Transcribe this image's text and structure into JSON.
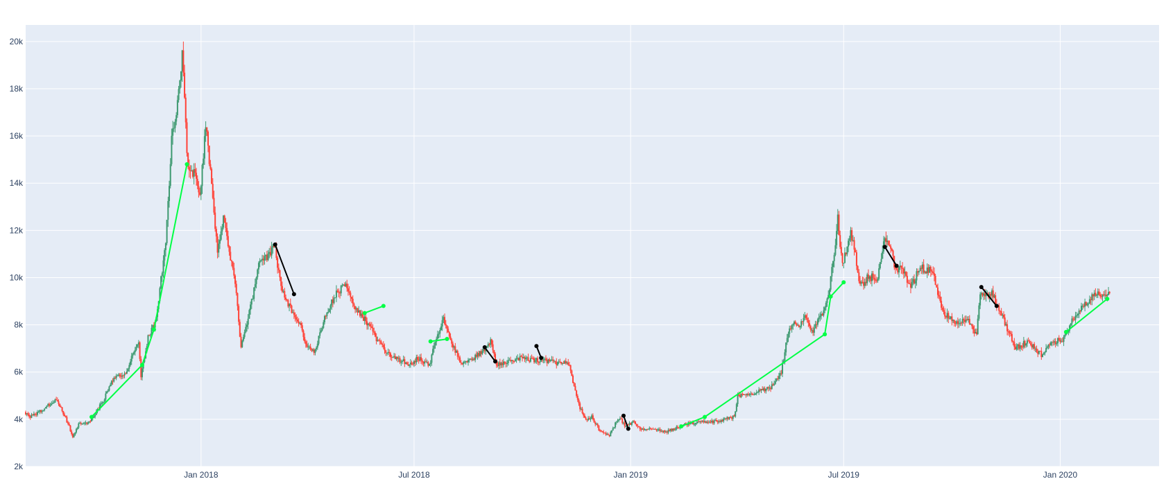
{
  "chart_data": {
    "type": "candlestick",
    "title": "",
    "xlabel": "",
    "ylabel": "",
    "xlim": [
      "2017-08-05",
      "2020-03-25"
    ],
    "ylim": [
      2000,
      20700
    ],
    "grid": true,
    "legend": "none",
    "x_ticks": [
      {
        "date": "2018-01-01",
        "label": "Jan 2018"
      },
      {
        "date": "2018-07-01",
        "label": "Jul 2018"
      },
      {
        "date": "2019-01-01",
        "label": "Jan 2019"
      },
      {
        "date": "2019-07-01",
        "label": "Jul 2019"
      },
      {
        "date": "2020-01-01",
        "label": "Jan 2020"
      }
    ],
    "y_ticks": [
      {
        "value": 2000,
        "label": "2k"
      },
      {
        "value": 4000,
        "label": "4k"
      },
      {
        "value": 6000,
        "label": "6k"
      },
      {
        "value": 8000,
        "label": "8k"
      },
      {
        "value": 10000,
        "label": "10k"
      },
      {
        "value": 12000,
        "label": "12k"
      },
      {
        "value": 14000,
        "label": "14k"
      },
      {
        "value": 16000,
        "label": "16k"
      },
      {
        "value": 18000,
        "label": "18k"
      },
      {
        "value": 20000,
        "label": "20k"
      }
    ],
    "colors": {
      "increasing": "#3d9970",
      "decreasing": "#ff4136",
      "uptrend_line": "#00ff44",
      "downtrend_line": "#000000",
      "plot_bg": "#e5ecf6",
      "grid": "#ffffff"
    },
    "price_path": [
      [
        "2017-08-05",
        4300
      ],
      [
        "2017-08-10",
        4100
      ],
      [
        "2017-08-20",
        4400
      ],
      [
        "2017-08-31",
        4800
      ],
      [
        "2017-09-05",
        4500
      ],
      [
        "2017-09-12",
        3700
      ],
      [
        "2017-09-15",
        3200
      ],
      [
        "2017-09-20",
        3800
      ],
      [
        "2017-09-30",
        3900
      ],
      [
        "2017-10-05",
        4300
      ],
      [
        "2017-10-12",
        4900
      ],
      [
        "2017-10-20",
        5800
      ],
      [
        "2017-10-31",
        6000
      ],
      [
        "2017-11-05",
        6800
      ],
      [
        "2017-11-10",
        7200
      ],
      [
        "2017-11-12",
        5800
      ],
      [
        "2017-11-18",
        7500
      ],
      [
        "2017-11-25",
        8200
      ],
      [
        "2017-11-29",
        10000
      ],
      [
        "2017-12-03",
        11300
      ],
      [
        "2017-12-08",
        16000
      ],
      [
        "2017-12-12",
        16800
      ],
      [
        "2017-12-17",
        19500
      ],
      [
        "2017-12-22",
        14500
      ],
      [
        "2017-12-27",
        14500
      ],
      [
        "2018-01-01",
        13500
      ],
      [
        "2018-01-06",
        16500
      ],
      [
        "2018-01-10",
        14500
      ],
      [
        "2018-01-16",
        11000
      ],
      [
        "2018-01-21",
        12500
      ],
      [
        "2018-01-26",
        11000
      ],
      [
        "2018-02-01",
        9500
      ],
      [
        "2018-02-05",
        7000
      ],
      [
        "2018-02-12",
        8500
      ],
      [
        "2018-02-20",
        10500
      ],
      [
        "2018-03-01",
        11000
      ],
      [
        "2018-03-05",
        11400
      ],
      [
        "2018-03-12",
        9500
      ],
      [
        "2018-03-20",
        8600
      ],
      [
        "2018-03-27",
        8000
      ],
      [
        "2018-04-03",
        7000
      ],
      [
        "2018-04-08",
        6800
      ],
      [
        "2018-04-15",
        8000
      ],
      [
        "2018-04-25",
        9200
      ],
      [
        "2018-05-05",
        9700
      ],
      [
        "2018-05-12",
        8700
      ],
      [
        "2018-05-20",
        8300
      ],
      [
        "2018-05-30",
        7500
      ],
      [
        "2018-06-10",
        6800
      ],
      [
        "2018-06-20",
        6500
      ],
      [
        "2018-06-30",
        6300
      ],
      [
        "2018-07-05",
        6600
      ],
      [
        "2018-07-15",
        6300
      ],
      [
        "2018-07-20",
        7300
      ],
      [
        "2018-07-27",
        8200
      ],
      [
        "2018-08-05",
        7000
      ],
      [
        "2018-08-12",
        6300
      ],
      [
        "2018-08-20",
        6500
      ],
      [
        "2018-08-31",
        7000
      ],
      [
        "2018-09-05",
        7300
      ],
      [
        "2018-09-10",
        6300
      ],
      [
        "2018-09-20",
        6500
      ],
      [
        "2018-09-30",
        6600
      ],
      [
        "2018-10-10",
        6500
      ],
      [
        "2018-10-20",
        6500
      ],
      [
        "2018-10-31",
        6400
      ],
      [
        "2018-11-10",
        6400
      ],
      [
        "2018-11-14",
        5600
      ],
      [
        "2018-11-20",
        4500
      ],
      [
        "2018-11-25",
        4000
      ],
      [
        "2018-11-30",
        4100
      ],
      [
        "2018-12-07",
        3500
      ],
      [
        "2018-12-15",
        3300
      ],
      [
        "2018-12-20",
        3800
      ],
      [
        "2018-12-24",
        4100
      ],
      [
        "2018-12-28",
        3700
      ],
      [
        "2019-01-05",
        3900
      ],
      [
        "2019-01-10",
        3600
      ],
      [
        "2019-01-20",
        3600
      ],
      [
        "2019-01-31",
        3450
      ],
      [
        "2019-02-08",
        3600
      ],
      [
        "2019-02-18",
        3800
      ],
      [
        "2019-02-28",
        3850
      ],
      [
        "2019-03-15",
        3900
      ],
      [
        "2019-03-31",
        4100
      ],
      [
        "2019-04-03",
        5000
      ],
      [
        "2019-04-15",
        5100
      ],
      [
        "2019-04-30",
        5300
      ],
      [
        "2019-05-10",
        6000
      ],
      [
        "2019-05-15",
        7500
      ],
      [
        "2019-05-20",
        8100
      ],
      [
        "2019-05-25",
        7800
      ],
      [
        "2019-05-30",
        8500
      ],
      [
        "2019-06-05",
        7700
      ],
      [
        "2019-06-15",
        8500
      ],
      [
        "2019-06-20",
        9500
      ],
      [
        "2019-06-25",
        11500
      ],
      [
        "2019-06-27",
        12500
      ],
      [
        "2019-07-01",
        10500
      ],
      [
        "2019-07-08",
        12000
      ],
      [
        "2019-07-12",
        11000
      ],
      [
        "2019-07-16",
        9600
      ],
      [
        "2019-07-22",
        10000
      ],
      [
        "2019-07-31",
        10000
      ],
      [
        "2019-08-05",
        11500
      ],
      [
        "2019-08-10",
        11400
      ],
      [
        "2019-08-15",
        10300
      ],
      [
        "2019-08-20",
        10500
      ],
      [
        "2019-08-28",
        9600
      ],
      [
        "2019-09-05",
        10400
      ],
      [
        "2019-09-15",
        10300
      ],
      [
        "2019-09-25",
        8500
      ],
      [
        "2019-10-05",
        8100
      ],
      [
        "2019-10-15",
        8200
      ],
      [
        "2019-10-23",
        7600
      ],
      [
        "2019-10-26",
        9300
      ],
      [
        "2019-11-05",
        9300
      ],
      [
        "2019-11-10",
        8800
      ],
      [
        "2019-11-20",
        7600
      ],
      [
        "2019-11-25",
        7000
      ],
      [
        "2019-12-05",
        7300
      ],
      [
        "2019-12-18",
        6700
      ],
      [
        "2019-12-25",
        7250
      ],
      [
        "2020-01-05",
        7400
      ],
      [
        "2020-01-10",
        8000
      ],
      [
        "2020-01-20",
        8700
      ],
      [
        "2020-01-30",
        9300
      ],
      [
        "2020-02-05",
        9300
      ],
      [
        "2020-02-12",
        9400
      ]
    ],
    "trend_segments": [
      {
        "direction": "up",
        "points": [
          [
            "2017-09-30",
            4100
          ],
          [
            "2017-11-12",
            6300
          ],
          [
            "2017-11-22",
            7800
          ],
          [
            "2017-12-20",
            14800
          ]
        ]
      },
      {
        "direction": "down",
        "points": [
          [
            "2018-03-05",
            11400
          ],
          [
            "2018-03-21",
            9300
          ]
        ]
      },
      {
        "direction": "up",
        "points": [
          [
            "2018-05-20",
            8500
          ],
          [
            "2018-06-05",
            8800
          ]
        ]
      },
      {
        "direction": "up",
        "points": [
          [
            "2018-07-15",
            7300
          ],
          [
            "2018-07-29",
            7400
          ]
        ]
      },
      {
        "direction": "down",
        "points": [
          [
            "2018-08-30",
            7050
          ],
          [
            "2018-09-08",
            6450
          ]
        ]
      },
      {
        "direction": "down",
        "points": [
          [
            "2018-10-13",
            7100
          ],
          [
            "2018-10-17",
            6600
          ]
        ]
      },
      {
        "direction": "down",
        "points": [
          [
            "2018-12-26",
            4150
          ],
          [
            "2018-12-30",
            3600
          ]
        ]
      },
      {
        "direction": "up",
        "points": [
          [
            "2019-02-13",
            3700
          ],
          [
            "2019-03-05",
            4100
          ],
          [
            "2019-06-15",
            7600
          ],
          [
            "2019-06-20",
            9200
          ],
          [
            "2019-07-01",
            9800
          ]
        ]
      },
      {
        "direction": "down",
        "points": [
          [
            "2019-08-05",
            11300
          ],
          [
            "2019-08-15",
            10500
          ]
        ]
      },
      {
        "direction": "down",
        "points": [
          [
            "2019-10-26",
            9600
          ],
          [
            "2019-11-08",
            8800
          ]
        ]
      },
      {
        "direction": "up",
        "points": [
          [
            "2020-01-06",
            7700
          ],
          [
            "2020-02-10",
            9100
          ]
        ]
      }
    ]
  }
}
